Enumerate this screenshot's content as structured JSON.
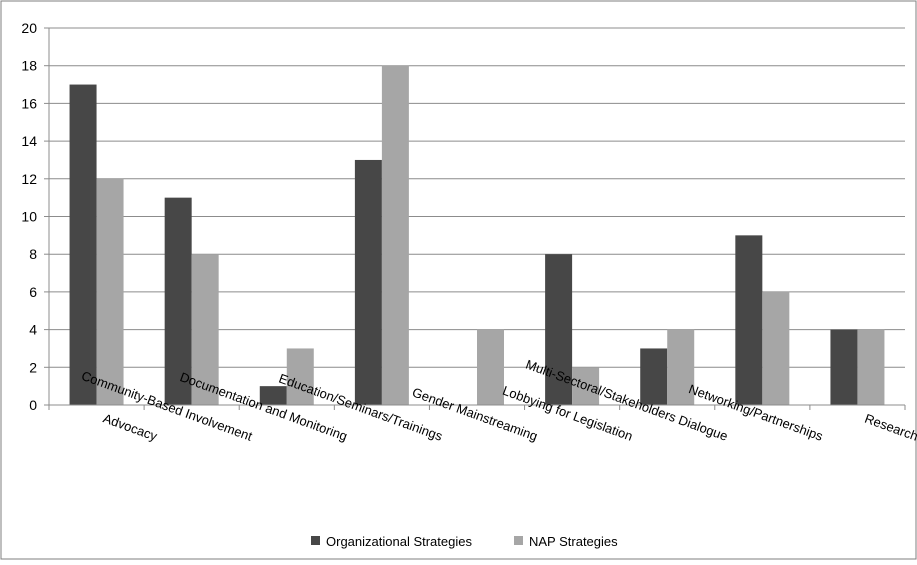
{
  "chart_data": {
    "type": "bar",
    "title": "",
    "xlabel": "",
    "ylabel": "",
    "ylim": [
      0,
      20
    ],
    "yticks": [
      "0",
      "2",
      "4",
      "6",
      "8",
      "10",
      "12",
      "14",
      "16",
      "18",
      "20"
    ],
    "grid": true,
    "legend_position": "bottom",
    "categories": [
      "Advocacy",
      "Community-Based Involvement",
      "Documentation and Monitoring",
      "Education/Seminars/Trainings",
      "Gender Mainstreaming",
      "Lobbying for Legislation",
      "Multi-Sectoral/Stakeholders Dialogue",
      "Networking/Partnerships",
      "Research"
    ],
    "series": [
      {
        "name": "Organizational Strategies",
        "color": "#474747",
        "values": [
          17,
          11,
          1,
          13,
          0,
          8,
          3,
          9,
          4
        ]
      },
      {
        "name": "NAP Strategies",
        "color": "#a6a6a6",
        "values": [
          12,
          8,
          3,
          18,
          4,
          2,
          4,
          6,
          4
        ]
      }
    ]
  }
}
